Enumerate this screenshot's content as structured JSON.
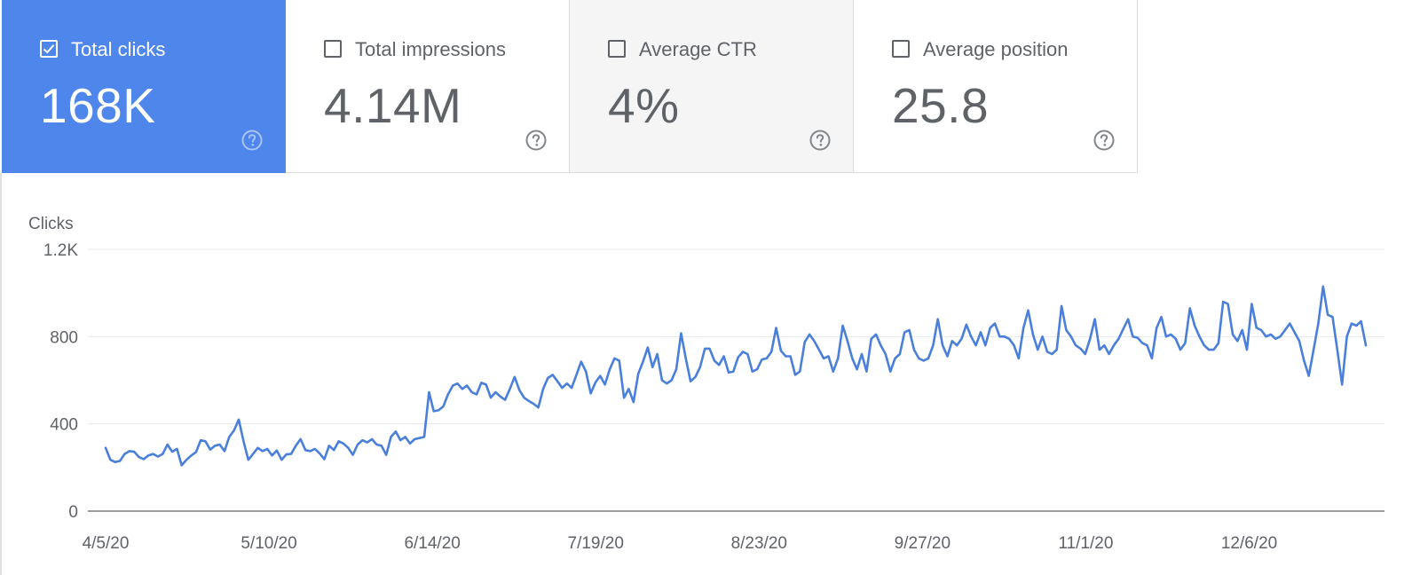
{
  "metrics": [
    {
      "label": "Total clicks",
      "value": "168K",
      "checked": true,
      "state": "selected"
    },
    {
      "label": "Total impressions",
      "value": "4.14M",
      "checked": false,
      "state": "normal"
    },
    {
      "label": "Average CTR",
      "value": "4%",
      "checked": false,
      "state": "hovered"
    },
    {
      "label": "Average position",
      "value": "25.8",
      "checked": false,
      "state": "normal"
    }
  ],
  "colors": {
    "accent": "#4f86ec",
    "line": "#4a7fdc",
    "grid": "#e8eaed",
    "axis": "#5f6368"
  },
  "icons": {
    "help": "help-circle-icon",
    "checkbox": "checkbox-icon"
  },
  "chart_data": {
    "type": "line",
    "ylabel": "Clicks",
    "ylim": [
      0,
      1200
    ],
    "yticks": [
      {
        "value": 0,
        "label": "0"
      },
      {
        "value": 400,
        "label": "400"
      },
      {
        "value": 800,
        "label": "800"
      },
      {
        "value": 1200,
        "label": "1.2K"
      }
    ],
    "xticks": [
      "4/5/20",
      "5/10/20",
      "6/14/20",
      "7/19/20",
      "8/23/20",
      "9/27/20",
      "11/1/20",
      "12/6/20"
    ],
    "x_start": "4/5/20",
    "x_end": "12/30/20",
    "grid": true,
    "series": [
      {
        "values": [
          290,
          235,
          225,
          230,
          262,
          275,
          272,
          248,
          238,
          255,
          262,
          250,
          262,
          305,
          272,
          285,
          210,
          235,
          255,
          270,
          325,
          320,
          282,
          300,
          305,
          275,
          340,
          370,
          420,
          320,
          235,
          262,
          290,
          275,
          285,
          255,
          278,
          235,
          260,
          262,
          300,
          330,
          280,
          275,
          285,
          265,
          238,
          300,
          280,
          320,
          310,
          290,
          258,
          305,
          325,
          315,
          330,
          305,
          300,
          258,
          340,
          365,
          325,
          340,
          310,
          330,
          335,
          340,
          545,
          458,
          462,
          480,
          535,
          575,
          585,
          560,
          575,
          545,
          535,
          588,
          580,
          520,
          545,
          525,
          510,
          560,
          615,
          555,
          520,
          505,
          492,
          475,
          560,
          610,
          625,
          595,
          565,
          585,
          565,
          625,
          685,
          640,
          540,
          590,
          620,
          580,
          650,
          700,
          690,
          520,
          560,
          500,
          630,
          685,
          750,
          660,
          720,
          600,
          585,
          600,
          650,
          815,
          700,
          595,
          615,
          660,
          745,
          745,
          690,
          670,
          710,
          635,
          640,
          705,
          730,
          720,
          640,
          650,
          695,
          700,
          730,
          840,
          735,
          710,
          710,
          625,
          640,
          775,
          810,
          780,
          740,
          700,
          710,
          640,
          700,
          850,
          780,
          700,
          650,
          720,
          640,
          790,
          810,
          760,
          720,
          640,
          700,
          720,
          820,
          830,
          740,
          700,
          690,
          700,
          760,
          880,
          760,
          710,
          780,
          760,
          790,
          855,
          800,
          760,
          820,
          760,
          840,
          860,
          800,
          800,
          790,
          760,
          700,
          840,
          920,
          810,
          740,
          800,
          730,
          720,
          740,
          940,
          830,
          800,
          760,
          745,
          720,
          790,
          880,
          740,
          760,
          720,
          760,
          790,
          835,
          880,
          800,
          795,
          770,
          760,
          700,
          840,
          890,
          800,
          810,
          790,
          740,
          770,
          930,
          850,
          800,
          760,
          740,
          740,
          770,
          960,
          950,
          810,
          780,
          830,
          740,
          950,
          840,
          830,
          800,
          810,
          790,
          800,
          830,
          860,
          820,
          780,
          690,
          620,
          740,
          860,
          1030,
          900,
          890,
          740,
          580,
          800,
          860,
          850,
          870,
          760
        ]
      }
    ]
  }
}
